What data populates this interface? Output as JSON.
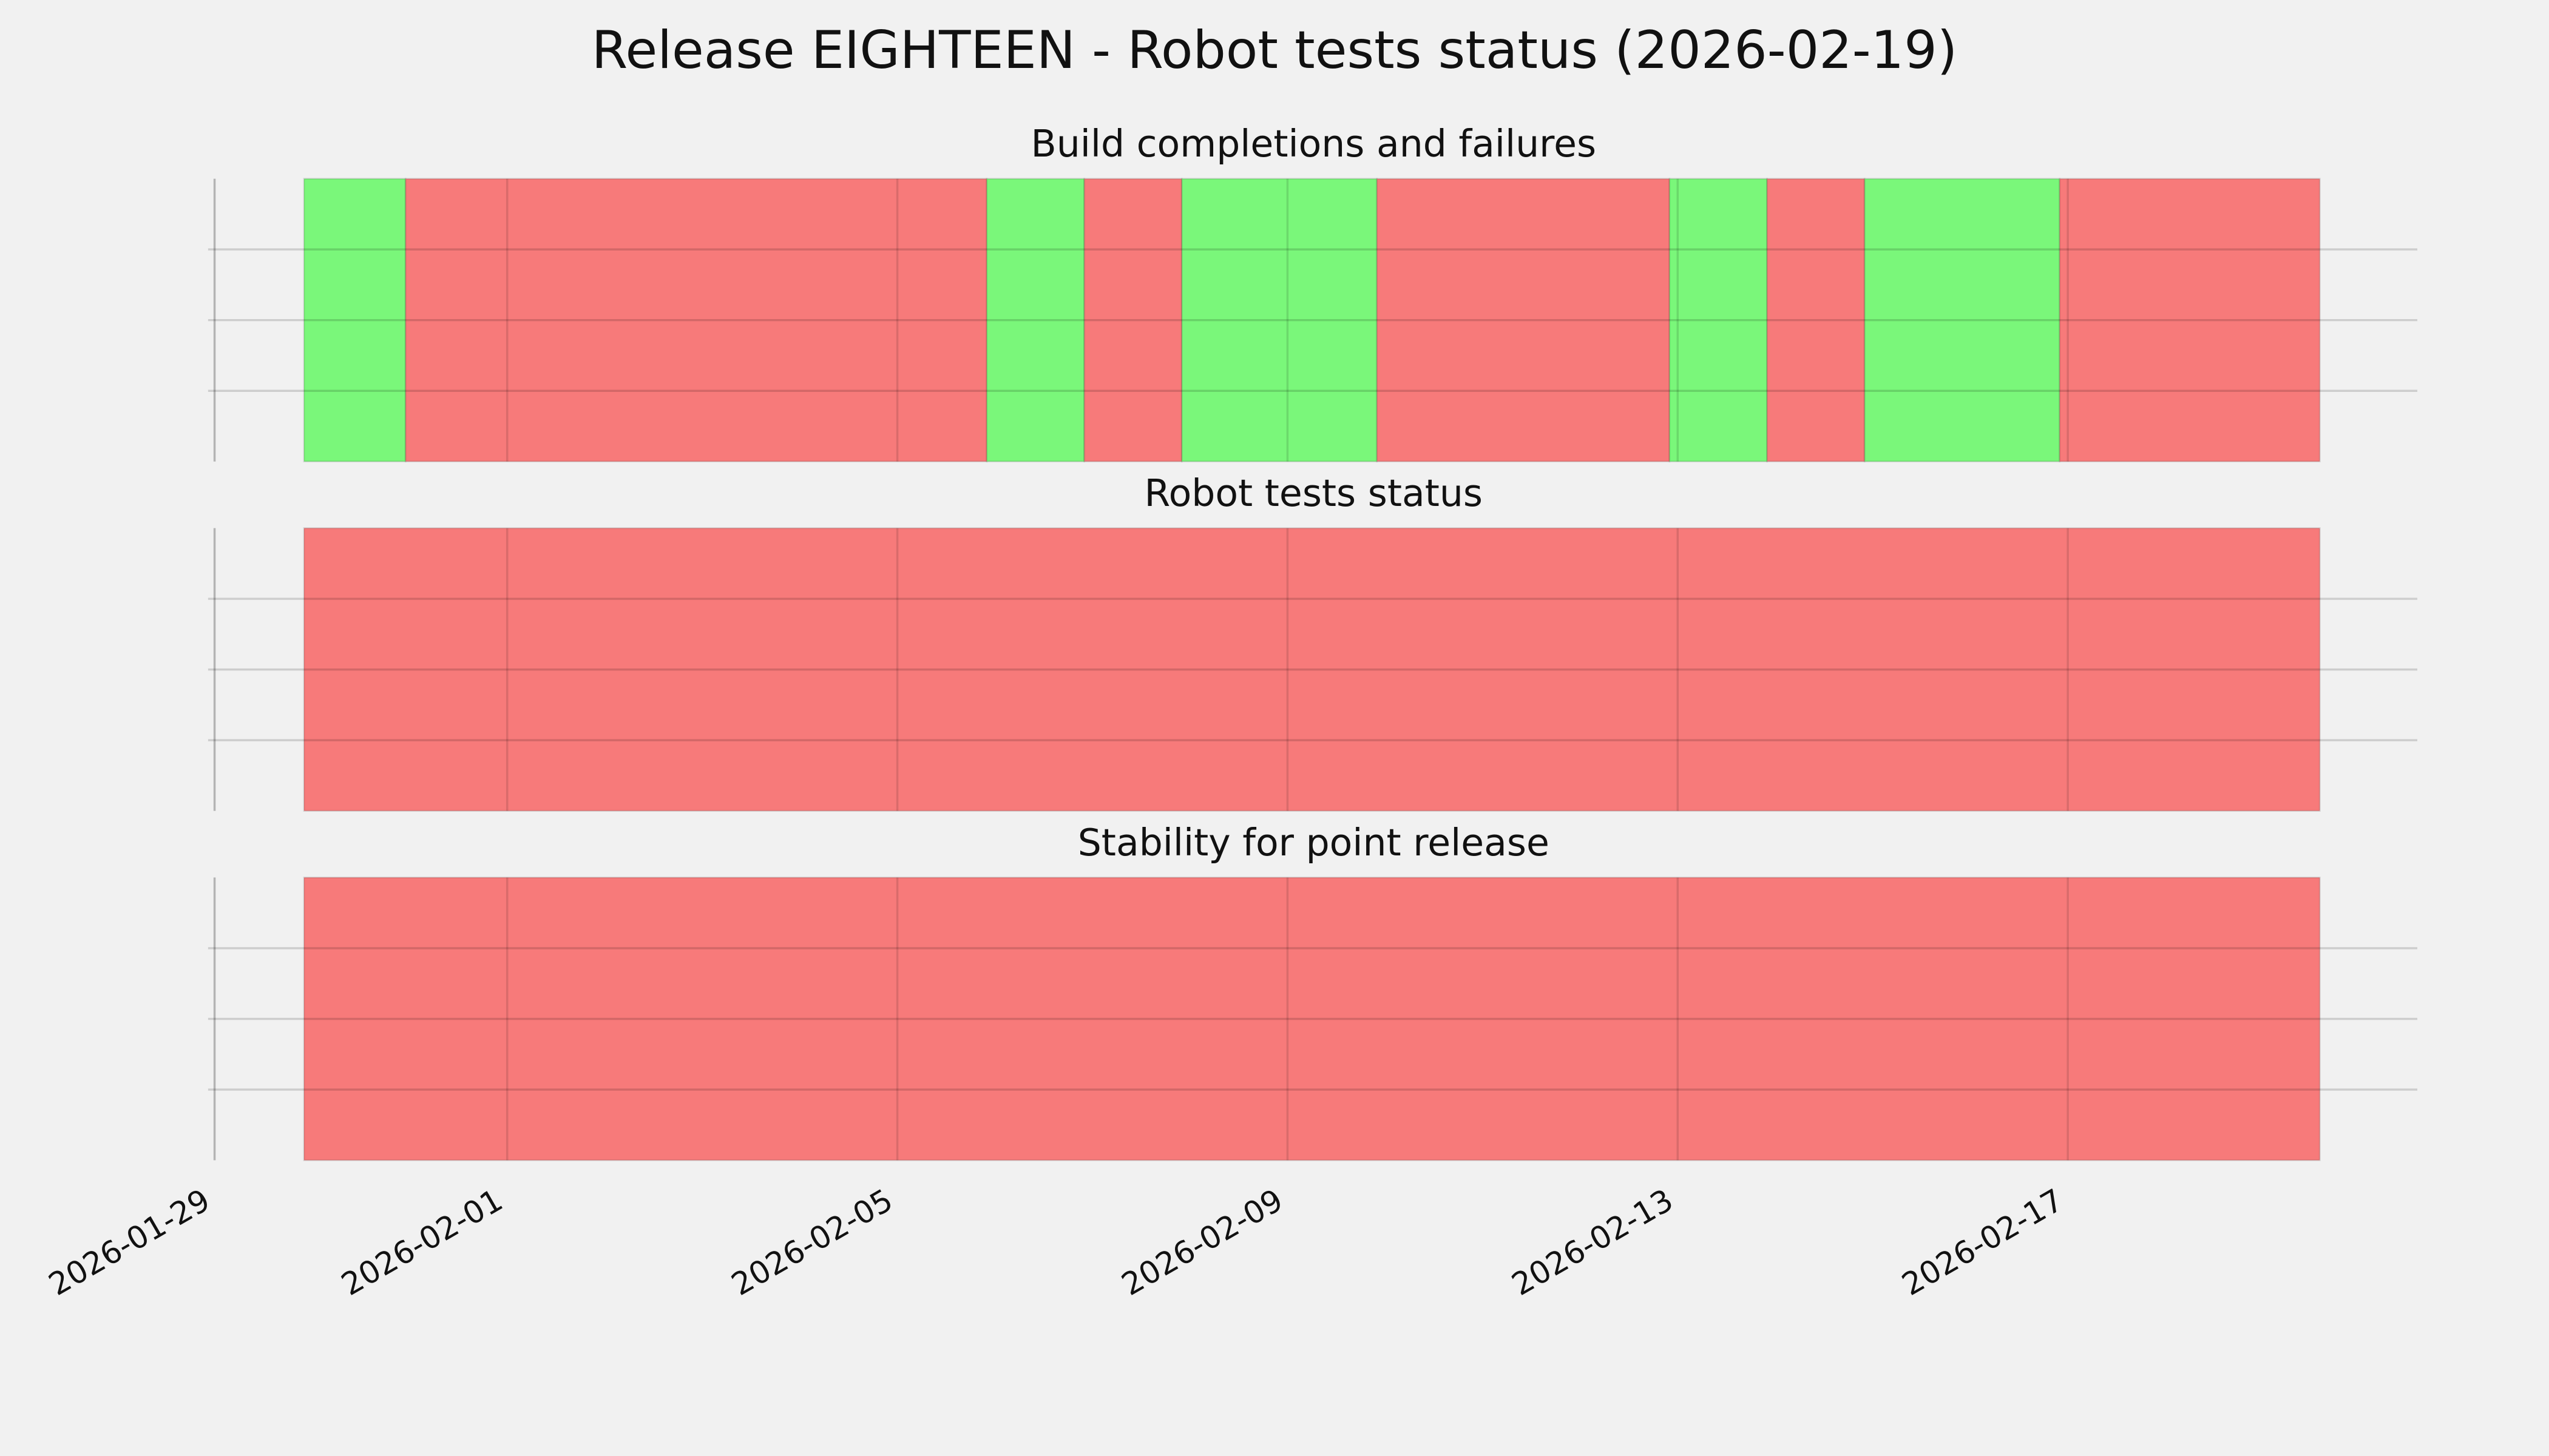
{
  "title": "Release EIGHTEEN - Robot tests status (2026-02-19)",
  "chart_data": [
    {
      "type": "timeline",
      "title": "Build completions and failures",
      "start": [
        "2026-01-29T22:00",
        "2026-01-30T23:00",
        "2026-02-05T22:00",
        "2026-02-06T22:00",
        "2026-02-07T22:00",
        "2026-02-09T22:00",
        "2026-02-12T22:00",
        "2026-02-13T22:00",
        "2026-02-14T22:00",
        "2026-02-16T22:00"
      ],
      "end": [
        "2026-01-30T23:00",
        "2026-02-05T22:00",
        "2026-02-06T22:00",
        "2026-02-07T22:00",
        "2026-02-09T22:00",
        "2026-02-12T22:00",
        "2026-02-13T22:00",
        "2026-02-14T22:00",
        "2026-02-16T22:00",
        "2026-02-19T14:00"
      ],
      "colors": [
        "#77f777",
        "#f77777",
        "#77f777",
        "#f77777",
        "#77f777",
        "#f77777",
        "#77f777",
        "#f77777",
        "#77f777",
        "#f77777"
      ],
      "xlim": [
        "2026-01-29",
        "2026-02-20T14:00"
      ],
      "xticks": [
        "2026-01-29",
        "2026-02-01",
        "2026-02-05",
        "2026-02-09",
        "2026-02-13",
        "2026-02-17"
      ],
      "grid": true
    },
    {
      "type": "timeline",
      "title": "Robot tests status",
      "start": [
        "2026-01-29T22:00"
      ],
      "end": [
        "2026-02-19T14:00"
      ],
      "colors": [
        "#f77777"
      ],
      "xlim": [
        "2026-01-29",
        "2026-02-20T14:00"
      ],
      "xticks": [
        "2026-01-29",
        "2026-02-01",
        "2026-02-05",
        "2026-02-09",
        "2026-02-13",
        "2026-02-17"
      ],
      "grid": true
    },
    {
      "type": "timeline",
      "title": "Stability for point release",
      "start": [
        "2026-01-29T22:00"
      ],
      "end": [
        "2026-02-19T14:00"
      ],
      "colors": [
        "#f77777"
      ],
      "xlim": [
        "2026-01-29",
        "2026-02-20T14:00"
      ],
      "xticks": [
        "2026-01-29",
        "2026-02-01",
        "2026-02-05",
        "2026-02-09",
        "2026-02-13",
        "2026-02-17"
      ],
      "grid": true
    }
  ]
}
